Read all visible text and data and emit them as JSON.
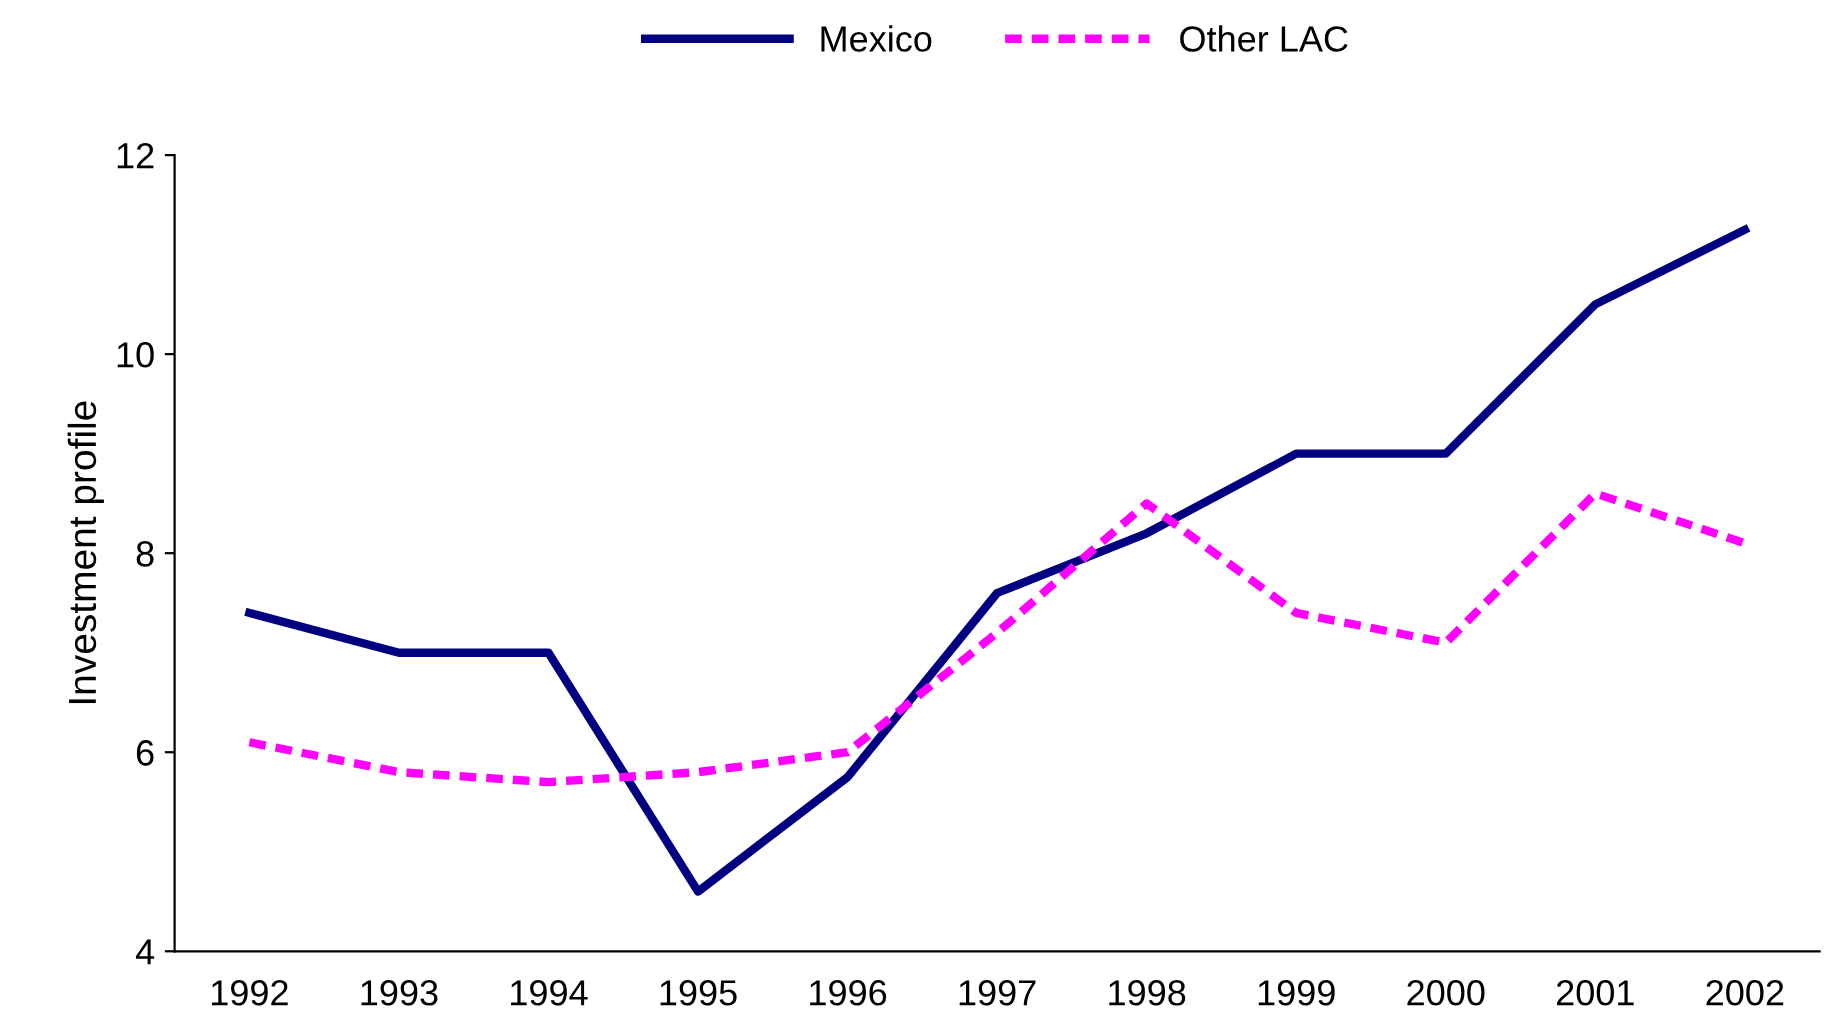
{
  "chart_data": {
    "type": "line",
    "ylabel": "Investment profile",
    "categories": [
      "1992",
      "1993",
      "1994",
      "1995",
      "1996",
      "1997",
      "1998",
      "1999",
      "2000",
      "2001",
      "2002"
    ],
    "series": [
      {
        "name": "Mexico",
        "color": "#000080",
        "line_style": "solid",
        "values": [
          7.4,
          7.0,
          7.0,
          4.6,
          5.75,
          7.6,
          8.2,
          9.0,
          9.0,
          10.5,
          11.25
        ]
      },
      {
        "name": "Other LAC",
        "color": "#ff00ff",
        "line_style": "dashed",
        "values": [
          6.1,
          5.8,
          5.7,
          5.8,
          6.0,
          7.2,
          8.5,
          7.4,
          7.1,
          8.6,
          8.1
        ]
      }
    ],
    "ylim": [
      4,
      12
    ],
    "yticks": [
      4,
      6,
      8,
      10,
      12
    ],
    "grid": false,
    "legend": "top",
    "marker": "none"
  }
}
